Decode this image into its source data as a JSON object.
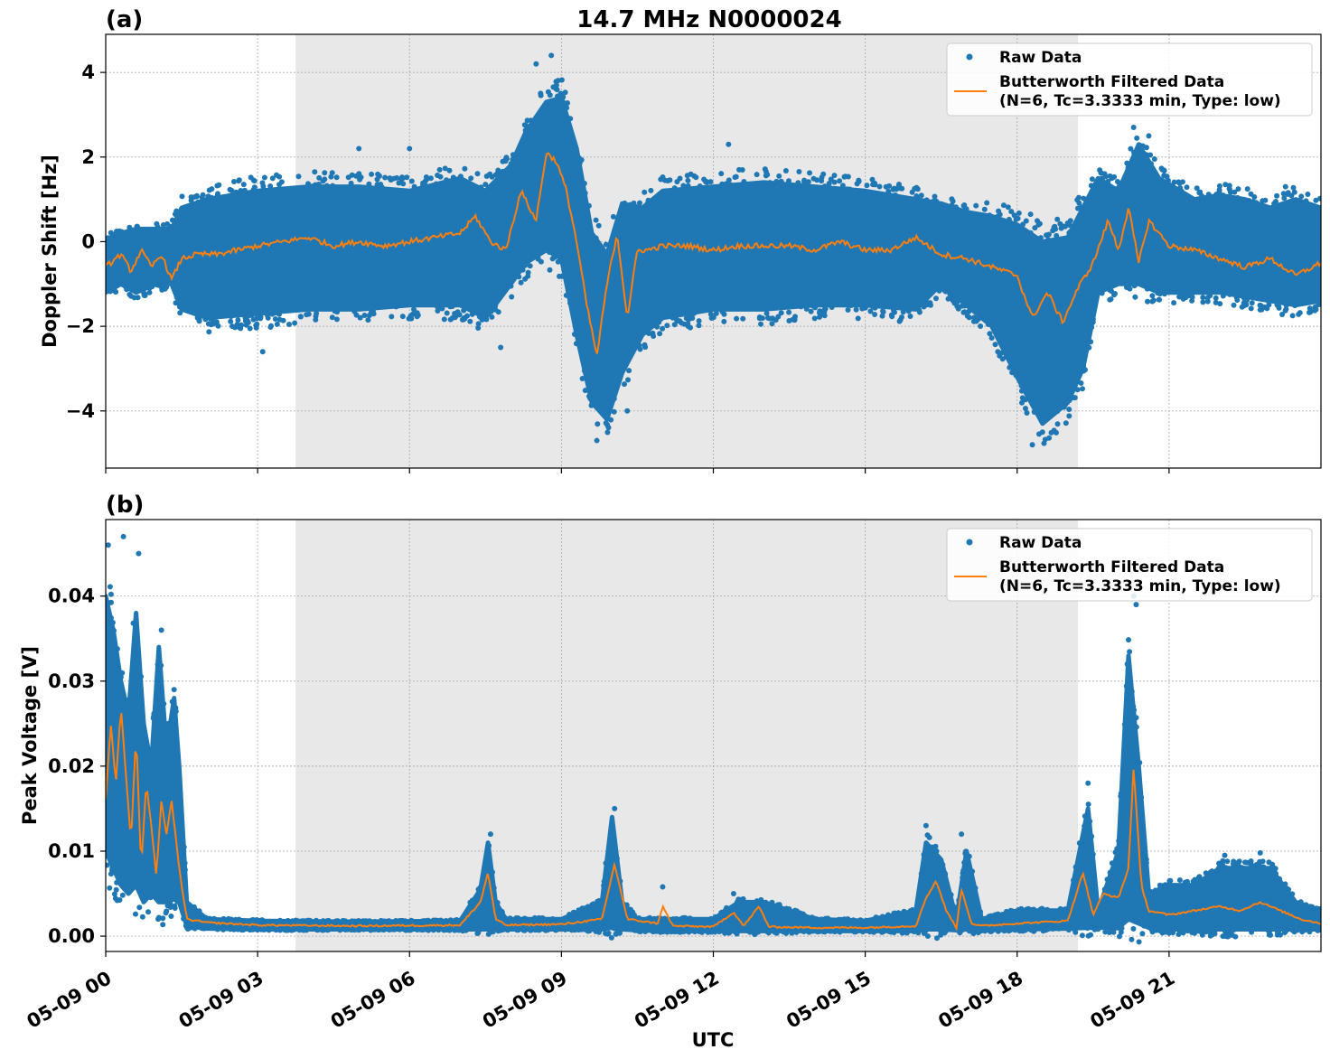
{
  "figure_title": "14.7 MHz N0000024",
  "xlabel": "UTC",
  "legend": {
    "raw": "Raw Data",
    "filtered_line1": "Butterworth Filtered Data",
    "filtered_line2": "(N=6, Tc=3.3333 min, Type: low)"
  },
  "colors": {
    "raw": "#1f77b4",
    "filtered": "#ff7f0e",
    "shade": "#e8e8e8"
  },
  "chart_data": [
    {
      "type": "scatter",
      "panel": "(a)",
      "title": "14.7 MHz N0000024",
      "ylabel": "Doppler Shift [Hz]",
      "xlabel": "",
      "xlim": [
        0,
        24
      ],
      "ylim": [
        -5.35,
        4.9
      ],
      "xticks": [
        0,
        3,
        6,
        9,
        12,
        15,
        18,
        21
      ],
      "xtick_labels": [
        "05-09 00",
        "05-09 03",
        "05-09 06",
        "05-09 09",
        "05-09 12",
        "05-09 15",
        "05-09 18",
        "05-09 21"
      ],
      "yticks": [
        -4,
        -2,
        0,
        2,
        4
      ],
      "ytick_labels": [
        "−4",
        "−2",
        "0",
        "2",
        "4"
      ],
      "grid": true,
      "legend_position": "top-right",
      "shaded_interval_hours": [
        3.75,
        19.2
      ],
      "series": [
        {
          "name": "Raw Data (band)",
          "style": "band",
          "x": [
            0,
            0.3,
            0.6,
            1.0,
            1.3,
            1.5,
            2.0,
            3.0,
            4.0,
            5.0,
            6.0,
            7.0,
            7.5,
            8.0,
            8.3,
            8.7,
            9.0,
            9.3,
            9.6,
            9.9,
            10.2,
            10.6,
            11.0,
            12.0,
            13.0,
            14.0,
            15.0,
            16.0,
            16.5,
            17.0,
            17.5,
            18.0,
            18.5,
            19.0,
            19.3,
            19.6,
            20.0,
            20.4,
            20.8,
            21.5,
            22.0,
            22.5,
            23.0,
            23.5,
            24.0
          ],
          "upper": [
            0.0,
            0.2,
            0.3,
            0.3,
            0.3,
            0.8,
            1.0,
            1.2,
            1.3,
            1.3,
            1.2,
            1.5,
            1.2,
            1.8,
            2.6,
            3.3,
            3.4,
            2.2,
            0.2,
            -0.3,
            0.9,
            0.8,
            1.2,
            1.3,
            1.4,
            1.3,
            1.2,
            1.0,
            0.9,
            0.7,
            0.6,
            0.4,
            0.0,
            0.1,
            0.8,
            1.5,
            1.2,
            2.3,
            1.5,
            1.0,
            1.1,
            1.0,
            0.8,
            1.0,
            0.8
          ],
          "lower": [
            -1.2,
            -1.0,
            -1.2,
            -1.0,
            -1.0,
            -1.6,
            -1.8,
            -1.7,
            -1.6,
            -1.6,
            -1.5,
            -1.5,
            -1.8,
            -1.0,
            -0.5,
            -0.2,
            -0.4,
            -2.2,
            -3.8,
            -4.2,
            -3.1,
            -2.2,
            -1.8,
            -1.6,
            -1.6,
            -1.5,
            -1.5,
            -1.6,
            -1.0,
            -1.5,
            -2.0,
            -3.2,
            -4.3,
            -3.8,
            -3.0,
            -1.2,
            -1.0,
            -1.0,
            -1.2,
            -1.2,
            -1.2,
            -1.3,
            -1.4,
            -1.5,
            -1.4
          ]
        },
        {
          "name": "Raw Data (outliers)",
          "style": "points",
          "points": [
            [
              2.5,
              -2.0
            ],
            [
              3.1,
              -2.6
            ],
            [
              5.0,
              2.2
            ],
            [
              6.0,
              2.2
            ],
            [
              8.5,
              4.2
            ],
            [
              8.8,
              4.4
            ],
            [
              9.7,
              -4.7
            ],
            [
              12.3,
              2.3
            ],
            [
              18.3,
              -4.8
            ],
            [
              18.5,
              -4.5
            ],
            [
              20.3,
              2.7
            ],
            [
              20.6,
              2.5
            ],
            [
              23.3,
              1.3
            ],
            [
              7.8,
              -2.5
            ],
            [
              10.3,
              -4.0
            ]
          ]
        },
        {
          "name": "Butterworth Filtered Data",
          "style": "line",
          "x": [
            0,
            0.3,
            0.5,
            0.7,
            0.9,
            1.1,
            1.3,
            1.5,
            1.8,
            2.2,
            2.6,
            3.0,
            3.5,
            4.0,
            4.5,
            5.0,
            5.5,
            6.0,
            6.5,
            7.0,
            7.3,
            7.6,
            7.9,
            8.2,
            8.5,
            8.7,
            8.9,
            9.1,
            9.3,
            9.5,
            9.7,
            9.9,
            10.1,
            10.3,
            10.5,
            10.7,
            11.0,
            11.5,
            12.0,
            12.5,
            13.0,
            13.5,
            14.0,
            14.5,
            15.0,
            15.5,
            16.0,
            16.5,
            17.0,
            17.5,
            18.0,
            18.3,
            18.6,
            18.9,
            19.2,
            19.5,
            19.8,
            20.0,
            20.2,
            20.4,
            20.6,
            20.8,
            21.0,
            21.5,
            22.0,
            22.5,
            23.0,
            23.5,
            24.0
          ],
          "y": [
            -0.6,
            -0.3,
            -0.7,
            -0.2,
            -0.6,
            -0.3,
            -0.9,
            -0.4,
            -0.3,
            -0.3,
            -0.2,
            -0.1,
            0.0,
            0.1,
            -0.1,
            0.0,
            -0.1,
            0.0,
            0.1,
            0.2,
            0.6,
            0.0,
            -0.2,
            1.2,
            0.5,
            2.1,
            1.9,
            1.2,
            0.0,
            -1.5,
            -2.7,
            -1.0,
            0.2,
            -1.8,
            -0.2,
            -0.2,
            -0.1,
            -0.1,
            -0.2,
            -0.1,
            -0.1,
            -0.1,
            -0.2,
            0.0,
            -0.2,
            -0.2,
            0.1,
            -0.3,
            -0.4,
            -0.6,
            -0.8,
            -1.8,
            -1.2,
            -1.9,
            -1.1,
            -0.5,
            0.5,
            -0.2,
            0.8,
            -0.5,
            0.5,
            0.2,
            -0.1,
            -0.2,
            -0.4,
            -0.6,
            -0.4,
            -0.8,
            -0.5
          ]
        }
      ]
    },
    {
      "type": "scatter",
      "panel": "(b)",
      "title": "",
      "ylabel": "Peak Voltage [V]",
      "xlabel": "UTC",
      "xlim": [
        0,
        24
      ],
      "ylim": [
        -0.0018,
        0.049
      ],
      "xticks": [
        0,
        3,
        6,
        9,
        12,
        15,
        18,
        21
      ],
      "xtick_labels": [
        "05-09 00",
        "05-09 03",
        "05-09 06",
        "05-09 09",
        "05-09 12",
        "05-09 15",
        "05-09 18",
        "05-09 21"
      ],
      "yticks": [
        0.0,
        0.01,
        0.02,
        0.03,
        0.04
      ],
      "ytick_labels": [
        "0.00",
        "0.01",
        "0.02",
        "0.03",
        "0.04"
      ],
      "grid": true,
      "legend_position": "top-right",
      "shaded_interval_hours": [
        3.75,
        19.2
      ],
      "series": [
        {
          "name": "Raw Data (band)",
          "style": "band",
          "x": [
            0,
            0.15,
            0.3,
            0.45,
            0.6,
            0.75,
            0.9,
            1.05,
            1.2,
            1.35,
            1.45,
            1.6,
            2.0,
            3.0,
            5.0,
            7.0,
            7.4,
            7.55,
            7.7,
            7.9,
            9.0,
            9.8,
            10.0,
            10.2,
            10.5,
            11.0,
            12.0,
            12.5,
            13.0,
            14.0,
            15.0,
            16.0,
            16.2,
            16.5,
            16.8,
            17.0,
            17.3,
            18.0,
            19.0,
            19.4,
            19.6,
            20.0,
            20.2,
            20.4,
            20.6,
            21.0,
            21.5,
            22.0,
            22.5,
            23.0,
            23.5,
            24.0
          ],
          "upper": [
            0.04,
            0.036,
            0.03,
            0.026,
            0.038,
            0.025,
            0.02,
            0.034,
            0.022,
            0.028,
            0.02,
            0.004,
            0.002,
            0.0018,
            0.0017,
            0.0018,
            0.0055,
            0.011,
            0.004,
            0.002,
            0.002,
            0.004,
            0.014,
            0.004,
            0.002,
            0.002,
            0.002,
            0.004,
            0.004,
            0.002,
            0.0018,
            0.003,
            0.011,
            0.009,
            0.002,
            0.01,
            0.002,
            0.003,
            0.003,
            0.015,
            0.003,
            0.01,
            0.033,
            0.02,
            0.005,
            0.006,
            0.006,
            0.008,
            0.008,
            0.008,
            0.004,
            0.003
          ],
          "lower": [
            0.01,
            0.008,
            0.006,
            0.005,
            0.006,
            0.004,
            0.005,
            0.004,
            0.004,
            0.005,
            0.004,
            0.0012,
            0.0009,
            0.0008,
            0.0008,
            0.0008,
            0.0008,
            0.0008,
            0.0008,
            0.0008,
            0.0008,
            0.0008,
            0.001,
            0.0008,
            0.0007,
            0.0006,
            0.0006,
            0.0006,
            0.0006,
            0.0006,
            0.0006,
            0.0006,
            0.0008,
            0.0008,
            0.0007,
            0.0008,
            0.0007,
            0.0008,
            0.0009,
            0.001,
            0.001,
            0.001,
            0.002,
            0.0015,
            0.001,
            0.0008,
            0.0008,
            0.0008,
            0.0008,
            0.0008,
            0.0008,
            0.0008
          ]
        },
        {
          "name": "Raw Data (outliers)",
          "style": "points",
          "points": [
            [
              0.05,
              0.046
            ],
            [
              0.35,
              0.047
            ],
            [
              0.65,
              0.045
            ],
            [
              1.1,
              0.036
            ],
            [
              1.35,
              0.029
            ],
            [
              7.6,
              0.012
            ],
            [
              10.05,
              0.015
            ],
            [
              11.0,
              0.0058
            ],
            [
              12.4,
              0.005
            ],
            [
              16.2,
              0.013
            ],
            [
              16.9,
              0.012
            ],
            [
              19.4,
              0.018
            ],
            [
              20.3,
              0.04
            ],
            [
              20.35,
              0.039
            ],
            [
              21.6,
              0.007
            ],
            [
              22.1,
              0.0095
            ],
            [
              22.8,
              0.0098
            ]
          ]
        },
        {
          "name": "Butterworth Filtered Data",
          "style": "line",
          "x": [
            0,
            0.1,
            0.2,
            0.3,
            0.4,
            0.5,
            0.6,
            0.7,
            0.8,
            0.9,
            1.0,
            1.1,
            1.2,
            1.3,
            1.45,
            1.6,
            2.0,
            3.0,
            5.0,
            7.0,
            7.4,
            7.55,
            7.7,
            7.9,
            9.0,
            9.8,
            10.05,
            10.3,
            10.9,
            11.0,
            11.2,
            12.0,
            12.4,
            12.6,
            12.9,
            13.1,
            14.0,
            15.0,
            16.0,
            16.2,
            16.4,
            16.6,
            16.8,
            16.9,
            17.1,
            17.3,
            18.0,
            19.0,
            19.3,
            19.5,
            19.7,
            20.0,
            20.2,
            20.3,
            20.45,
            20.6,
            21.0,
            21.5,
            22.0,
            22.4,
            22.8,
            23.2,
            23.6,
            24.0
          ],
          "y": [
            0.016,
            0.025,
            0.018,
            0.027,
            0.019,
            0.011,
            0.024,
            0.008,
            0.018,
            0.013,
            0.007,
            0.016,
            0.012,
            0.016,
            0.008,
            0.002,
            0.0016,
            0.0013,
            0.0012,
            0.0013,
            0.004,
            0.0075,
            0.002,
            0.0013,
            0.0014,
            0.002,
            0.0085,
            0.002,
            0.0015,
            0.0035,
            0.0012,
            0.0011,
            0.0028,
            0.0012,
            0.0035,
            0.0011,
            0.001,
            0.001,
            0.0012,
            0.0045,
            0.0065,
            0.003,
            0.001,
            0.0055,
            0.0015,
            0.0012,
            0.0015,
            0.0018,
            0.0075,
            0.0025,
            0.005,
            0.0045,
            0.008,
            0.02,
            0.006,
            0.003,
            0.0025,
            0.003,
            0.0035,
            0.003,
            0.004,
            0.003,
            0.002,
            0.0015
          ]
        }
      ]
    }
  ]
}
